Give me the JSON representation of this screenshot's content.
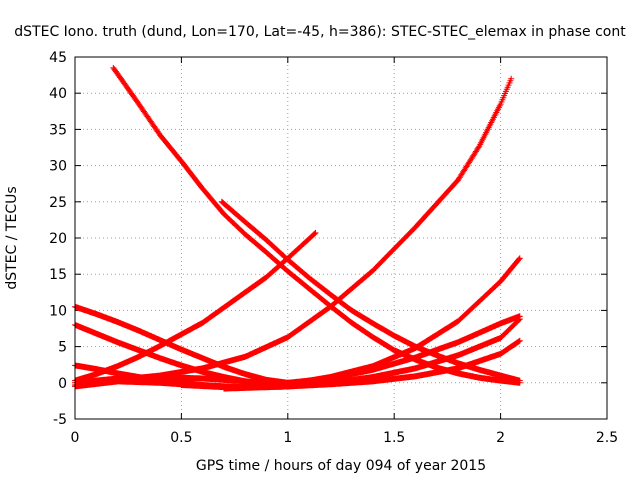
{
  "chart_data": {
    "type": "scatter",
    "title": "dSTEC Iono. truth (dund, Lon=170, Lat=-45, h=386): STEC-STEC_elemax in phase cont",
    "xlabel": "GPS time / hours of day 094 of year 2015",
    "ylabel": "dSTEC  / TECUs",
    "xlim": [
      0,
      2.5
    ],
    "ylim": [
      -5,
      45
    ],
    "xticks": [
      "0",
      "0.5",
      "1",
      "1.5",
      "2",
      "2.5"
    ],
    "yticks": [
      "-5",
      "0",
      "5",
      "10",
      "15",
      "20",
      "25",
      "30",
      "35",
      "40",
      "45"
    ],
    "grid": true,
    "marker": "+",
    "color": "#ff0000",
    "series": [
      {
        "x": [
          0.18,
          0.3,
          0.4,
          0.5,
          0.6,
          0.7,
          0.8,
          0.9,
          1.0,
          1.1,
          1.2,
          1.3,
          1.4,
          1.5,
          1.6,
          1.7,
          1.8,
          1.9,
          2.0,
          2.09
        ],
        "y": [
          43.5,
          38.5,
          34.2,
          30.6,
          26.8,
          23.3,
          20.5,
          18.0,
          15.4,
          13.0,
          10.6,
          8.3,
          6.3,
          4.5,
          3.2,
          2.1,
          1.3,
          0.7,
          0.3,
          0.0
        ]
      },
      {
        "x": [
          0.69,
          0.8,
          0.9,
          1.0,
          1.1,
          1.2,
          1.3,
          1.4,
          1.5,
          1.6,
          1.7,
          1.8,
          1.9,
          2.0,
          2.09
        ],
        "y": [
          25.0,
          22.2,
          19.7,
          17.0,
          14.5,
          12.2,
          10.0,
          8.2,
          6.5,
          5.0,
          3.8,
          2.7,
          1.8,
          1.0,
          0.3
        ]
      },
      {
        "x": [
          0.0,
          0.1,
          0.2,
          0.3,
          0.4,
          0.5,
          0.6,
          0.7,
          0.8,
          0.9,
          1.0,
          1.13
        ],
        "y": [
          0.3,
          1.2,
          2.3,
          3.6,
          5.1,
          6.7,
          8.3,
          10.4,
          12.5,
          14.6,
          17.2,
          20.7
        ]
      },
      {
        "x": [
          0.0,
          0.2,
          0.4,
          0.6,
          0.8,
          1.0,
          1.2,
          1.4,
          1.6,
          1.8,
          1.9,
          2.0,
          2.05
        ],
        "y": [
          -0.3,
          0.4,
          1.0,
          2.0,
          3.6,
          6.3,
          10.5,
          15.5,
          21.5,
          28.0,
          32.7,
          38.5,
          42.0
        ]
      },
      {
        "x": [
          0.0,
          0.1,
          0.2,
          0.3,
          0.4,
          0.5,
          0.6,
          0.7,
          0.8,
          0.9,
          1.0,
          1.1
        ],
        "y": [
          10.5,
          9.5,
          8.4,
          7.2,
          5.9,
          4.6,
          3.4,
          2.2,
          1.2,
          0.4,
          0.0,
          0.0
        ]
      },
      {
        "x": [
          0.0,
          0.1,
          0.2,
          0.3,
          0.4,
          0.5,
          0.6,
          0.7,
          0.8,
          0.9,
          1.0
        ],
        "y": [
          8.0,
          6.8,
          5.6,
          4.5,
          3.4,
          2.4,
          1.5,
          0.8,
          0.2,
          -0.2,
          -0.3
        ]
      },
      {
        "x": [
          0.0,
          0.1,
          0.2,
          0.3,
          0.4,
          0.5,
          0.6,
          0.7,
          0.8,
          0.9,
          1.0
        ],
        "y": [
          2.4,
          1.9,
          1.3,
          0.8,
          0.3,
          0.0,
          -0.3,
          -0.5,
          -0.6,
          -0.5,
          -0.3
        ]
      },
      {
        "x": [
          0.0,
          0.2,
          0.4,
          0.6,
          0.8,
          1.0,
          1.2,
          1.4,
          1.6,
          1.8,
          2.0,
          2.09
        ],
        "y": [
          -0.5,
          0.2,
          0.0,
          -0.4,
          -0.6,
          -0.2,
          0.8,
          2.3,
          4.8,
          8.5,
          14.0,
          17.2
        ]
      },
      {
        "x": [
          0.0,
          0.2,
          0.4,
          0.6,
          0.8,
          0.9,
          1.0,
          1.2,
          1.4,
          1.6,
          1.8,
          2.0,
          2.09
        ],
        "y": [
          0.0,
          0.6,
          0.8,
          0.6,
          0.2,
          0.0,
          0.0,
          0.6,
          1.8,
          3.5,
          5.6,
          8.2,
          9.2
        ]
      },
      {
        "x": [
          0.5,
          0.7,
          0.9,
          1.0,
          1.2,
          1.4,
          1.6,
          1.8,
          2.0,
          2.09
        ],
        "y": [
          -0.3,
          -0.6,
          -0.6,
          -0.5,
          0.0,
          0.8,
          2.0,
          3.8,
          6.2,
          8.8
        ]
      },
      {
        "x": [
          0.7,
          0.9,
          1.0,
          1.2,
          1.4,
          1.6,
          1.8,
          2.0,
          2.09
        ],
        "y": [
          -0.8,
          -0.6,
          -0.5,
          -0.2,
          0.2,
          0.9,
          2.0,
          4.0,
          5.8
        ]
      }
    ]
  }
}
